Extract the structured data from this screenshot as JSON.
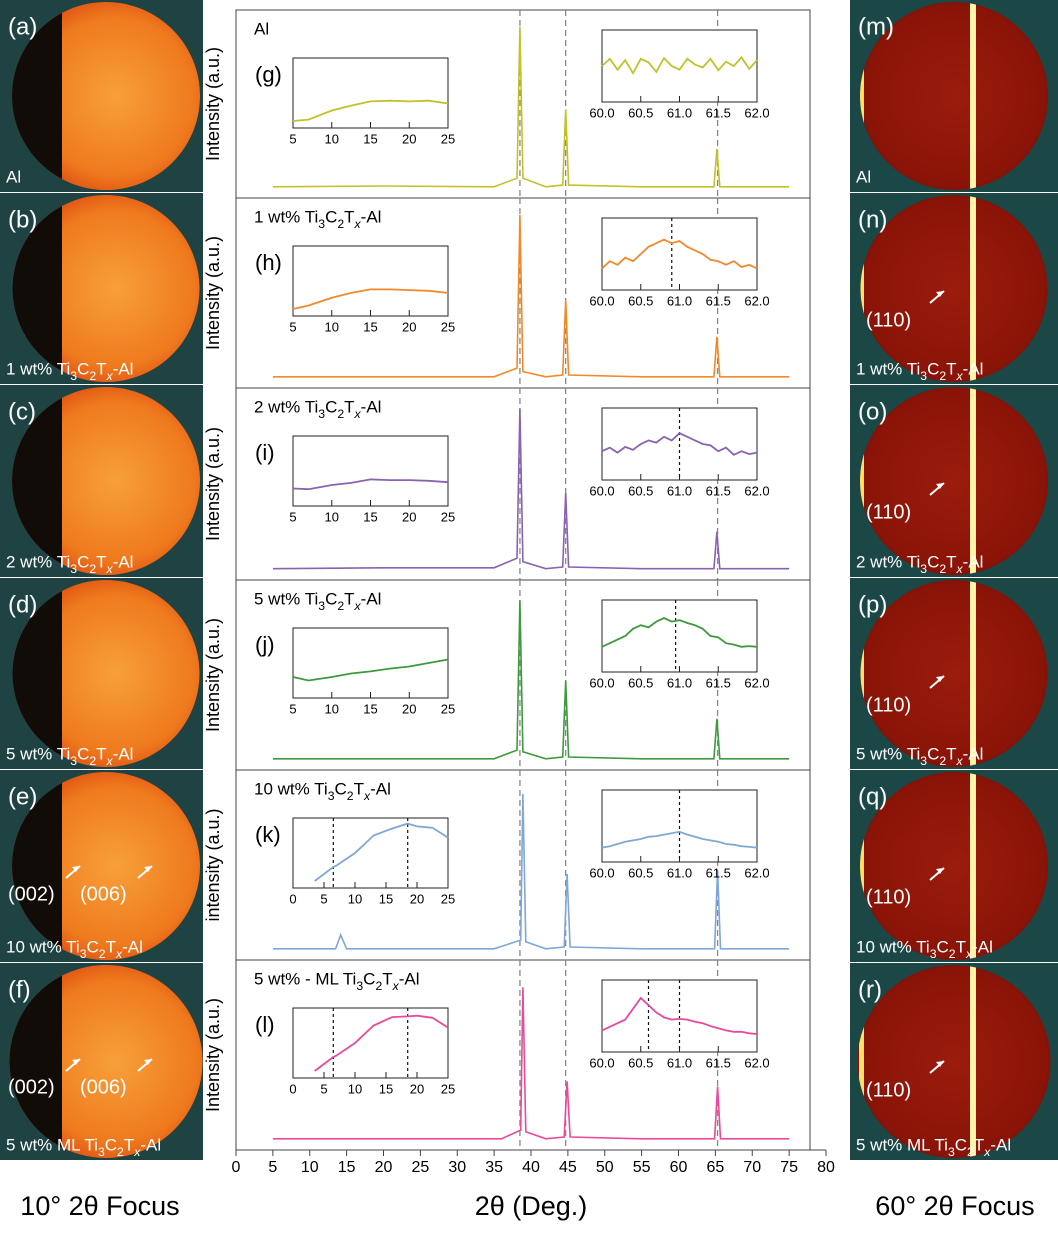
{
  "chart_data": [
    {
      "type": "line",
      "panel": "(g)",
      "title": "Al",
      "ylabel": "Intensity (a.u.)",
      "color": "#c2c22a",
      "xlim": [
        0,
        80
      ],
      "ylim": [
        0,
        100
      ],
      "vlines": [
        38.5,
        44.7,
        65.3
      ],
      "x": [
        5,
        20,
        35,
        38.1,
        38.5,
        38.9,
        42,
        44.3,
        44.7,
        45.1,
        55,
        64.8,
        65.2,
        65.6,
        75
      ],
      "values": [
        3,
        3.5,
        3,
        8,
        96,
        8,
        3,
        4,
        48,
        4,
        3,
        3,
        25,
        3,
        3
      ],
      "insets": [
        {
          "xlim": [
            5,
            25
          ],
          "ylim": [
            0,
            10
          ],
          "xticks": [
            5,
            10,
            15,
            20,
            25
          ],
          "x": [
            5,
            7,
            10,
            12.5,
            15,
            17.5,
            20,
            22.5,
            25
          ],
          "values": [
            1,
            1.2,
            2.5,
            3.2,
            3.8,
            3.9,
            3.8,
            3.9,
            3.5
          ]
        },
        {
          "xlim": [
            60,
            62
          ],
          "ylim": [
            0,
            10
          ],
          "xticks": [
            {
              "value": 60,
              "label": "60.0"
            },
            60.5,
            {
              "value": 61,
              "label": "61.0"
            },
            61.5,
            {
              "value": 62,
              "label": "62.0"
            }
          ],
          "x": [
            60,
            60.1,
            60.2,
            60.3,
            60.4,
            60.5,
            60.6,
            60.7,
            60.8,
            60.9,
            61,
            61.1,
            61.2,
            61.3,
            61.4,
            61.5,
            61.6,
            61.7,
            61.8,
            61.9,
            62
          ],
          "values": [
            5,
            6,
            4.5,
            5.8,
            4,
            6,
            5.5,
            4.2,
            6.1,
            5,
            4.5,
            6,
            5.2,
            4.8,
            6,
            4.4,
            5.6,
            5,
            6.2,
            4.6,
            5.8
          ]
        }
      ]
    },
    {
      "type": "line",
      "panel": "(h)",
      "title": "1 wt% Ti3C2Tx-Al",
      "ylabel": "Intensity (a.u.)",
      "color": "#f28a2a",
      "xlim": [
        0,
        80
      ],
      "ylim": [
        0,
        100
      ],
      "vlines": [
        38.5,
        44.7,
        65.3
      ],
      "x": [
        5,
        20,
        35,
        38.1,
        38.5,
        38.9,
        42,
        44.3,
        44.7,
        45.1,
        55,
        64.8,
        65.2,
        65.6,
        75
      ],
      "values": [
        3,
        3,
        3,
        8,
        96,
        6,
        3,
        4,
        47,
        4,
        3,
        3,
        26,
        3,
        3
      ],
      "insets": [
        {
          "xlim": [
            5,
            25
          ],
          "ylim": [
            0,
            10
          ],
          "xticks": [
            5,
            10,
            15,
            20,
            25
          ],
          "x": [
            5,
            7,
            10,
            12.5,
            15,
            17.5,
            20,
            22.5,
            25
          ],
          "values": [
            1,
            1.5,
            2.6,
            3.3,
            3.8,
            3.8,
            3.7,
            3.6,
            3.3
          ]
        },
        {
          "xlim": [
            60,
            62
          ],
          "ylim": [
            0,
            10
          ],
          "xticks": [
            {
              "value": 60,
              "label": "60.0"
            },
            60.5,
            {
              "value": 61,
              "label": "61.0"
            },
            61.5,
            {
              "value": 62,
              "label": "62.0"
            }
          ],
          "vlines": [
            60.9
          ],
          "x": [
            60,
            60.1,
            60.2,
            60.3,
            60.4,
            60.5,
            60.6,
            60.7,
            60.8,
            60.9,
            61,
            61.1,
            61.2,
            61.3,
            61.4,
            61.5,
            61.6,
            61.7,
            61.8,
            61.9,
            62
          ],
          "values": [
            3,
            4,
            3.5,
            4.5,
            4,
            5,
            6,
            6.5,
            7,
            6.5,
            6.8,
            6,
            5.5,
            5,
            4.2,
            4,
            3.5,
            4,
            3.2,
            3.5,
            3
          ]
        }
      ]
    },
    {
      "type": "line",
      "panel": "(i)",
      "title": "2 wt% Ti3C2Tx-Al",
      "ylabel": "Intensity (a.u.)",
      "color": "#8a62b0",
      "xlim": [
        0,
        80
      ],
      "ylim": [
        0,
        100
      ],
      "vlines": [
        38.5,
        44.7,
        65.3
      ],
      "x": [
        5,
        20,
        35,
        38.1,
        38.5,
        38.9,
        42,
        44.3,
        44.7,
        45.1,
        55,
        64.8,
        65.2,
        65.6,
        75
      ],
      "values": [
        3,
        3.5,
        3.5,
        9,
        94,
        7,
        3,
        4,
        46,
        4,
        3,
        3,
        24,
        3,
        3
      ],
      "insets": [
        {
          "xlim": [
            5,
            25
          ],
          "ylim": [
            0,
            10
          ],
          "xticks": [
            5,
            10,
            15,
            20,
            25
          ],
          "x": [
            5,
            7,
            10,
            12.5,
            15,
            17.5,
            20,
            22.5,
            25
          ],
          "values": [
            2.5,
            2.4,
            3,
            3.3,
            3.8,
            3.7,
            3.7,
            3.6,
            3.4
          ]
        },
        {
          "xlim": [
            60,
            62
          ],
          "ylim": [
            0,
            10
          ],
          "xticks": [
            {
              "value": 60,
              "label": "60.0"
            },
            60.5,
            {
              "value": 61,
              "label": "61.0"
            },
            61.5,
            {
              "value": 62,
              "label": "62.0"
            }
          ],
          "vlines": [
            61
          ],
          "x": [
            60,
            60.1,
            60.2,
            60.3,
            60.4,
            60.5,
            60.6,
            60.7,
            60.8,
            60.9,
            61,
            61.1,
            61.2,
            61.3,
            61.4,
            61.5,
            61.6,
            61.7,
            61.8,
            61.9,
            62
          ],
          "values": [
            4,
            4.5,
            3.8,
            4.6,
            4.2,
            5,
            5.5,
            5.2,
            6,
            5.5,
            6.5,
            6,
            5.5,
            5,
            4.8,
            4,
            4.5,
            3.5,
            4,
            3.6,
            3.8
          ]
        }
      ]
    },
    {
      "type": "line",
      "panel": "(j)",
      "title": "5 wt% Ti3C2Tx-Al",
      "ylabel": "Intensity (a.u.)",
      "color": "#3f9a3f",
      "xlim": [
        0,
        80
      ],
      "ylim": [
        0,
        100
      ],
      "vlines": [
        38.5,
        44.7,
        65.3
      ],
      "x": [
        5,
        20,
        35,
        38.1,
        38.5,
        38.9,
        42,
        44.3,
        44.7,
        45.1,
        55,
        64.8,
        65.2,
        65.6,
        75
      ],
      "values": [
        3,
        3,
        3,
        8,
        94,
        7,
        3,
        4,
        48,
        4,
        3,
        3,
        26,
        3,
        3
      ],
      "insets": [
        {
          "xlim": [
            5,
            25
          ],
          "ylim": [
            0,
            10
          ],
          "xticks": [
            5,
            10,
            15,
            20,
            25
          ],
          "x": [
            5,
            7,
            10,
            12.5,
            15,
            17.5,
            20,
            22.5,
            25
          ],
          "values": [
            3,
            2.5,
            3,
            3.5,
            3.8,
            4.2,
            4.5,
            5,
            5.5
          ]
        },
        {
          "xlim": [
            60,
            62
          ],
          "ylim": [
            0,
            10
          ],
          "xticks": [
            {
              "value": 60,
              "label": "60.0"
            },
            60.5,
            {
              "value": 61,
              "label": "61.0"
            },
            61.5,
            {
              "value": 62,
              "label": "62.0"
            }
          ],
          "vlines": [
            60.95
          ],
          "x": [
            60,
            60.1,
            60.2,
            60.3,
            60.4,
            60.5,
            60.6,
            60.7,
            60.8,
            60.9,
            61,
            61.1,
            61.2,
            61.3,
            61.4,
            61.5,
            61.6,
            61.7,
            61.8,
            61.9,
            62
          ],
          "values": [
            3.5,
            4,
            4.5,
            5,
            6,
            6.5,
            6.2,
            7,
            7.5,
            7,
            7.2,
            6.8,
            6.5,
            6,
            5,
            4.8,
            4,
            3.8,
            3.5,
            3.6,
            3.5
          ]
        }
      ]
    },
    {
      "type": "line",
      "panel": "(k)",
      "title": "10 wt% Ti3C2Tx-Al",
      "ylabel": "intensity (a.u.)",
      "color": "#7fa7d8",
      "xlim": [
        0,
        80
      ],
      "ylim": [
        0,
        100
      ],
      "vlines": [
        38.5,
        44.7,
        65.3
      ],
      "x": [
        5,
        13.5,
        14.2,
        15,
        35,
        38.6,
        38.9,
        39.3,
        42,
        44.5,
        44.9,
        45.3,
        55,
        64.9,
        65.3,
        65.7,
        75
      ],
      "values": [
        3,
        3,
        11,
        3,
        3,
        8,
        92,
        7,
        3,
        4,
        46,
        4,
        3,
        3,
        48,
        3,
        3
      ],
      "insets": [
        {
          "xlim": [
            0,
            25
          ],
          "ylim": [
            0,
            10
          ],
          "xticks": [
            0,
            5,
            10,
            15,
            20,
            25
          ],
          "vlines": [
            6.5,
            18.5
          ],
          "x": [
            3.5,
            5,
            6.5,
            7,
            10,
            13,
            16,
            18.5,
            20,
            22.5,
            25
          ],
          "values": [
            1,
            2,
            3,
            3.2,
            5,
            7.5,
            8.5,
            9.2,
            8.8,
            8.6,
            7.2
          ]
        },
        {
          "xlim": [
            60,
            62
          ],
          "ylim": [
            0,
            10
          ],
          "xticks": [
            {
              "value": 60,
              "label": "60.0"
            },
            60.5,
            {
              "value": 61,
              "label": "61.0"
            },
            61.5,
            {
              "value": 62,
              "label": "62.0"
            }
          ],
          "vlines": [
            61
          ],
          "x": [
            60,
            60.1,
            60.2,
            60.3,
            60.4,
            60.5,
            60.6,
            60.7,
            60.8,
            60.9,
            61,
            61.1,
            61.2,
            61.3,
            61.4,
            61.5,
            61.6,
            61.7,
            61.8,
            61.9,
            62
          ],
          "values": [
            2,
            2.2,
            2.5,
            2.8,
            3,
            3.2,
            3.5,
            3.6,
            3.8,
            4,
            4.2,
            3.8,
            3.5,
            3.2,
            3,
            2.8,
            2.5,
            2.4,
            2.2,
            2.1,
            2
          ]
        }
      ]
    },
    {
      "type": "line",
      "panel": "(l)",
      "title": "5 wt% - ML Ti3C2Tx-Al",
      "ylabel": "Intensity (a.u.)",
      "color": "#e94a9b",
      "xlim": [
        0,
        80
      ],
      "ylim": [
        0,
        100
      ],
      "vlines": [
        38.5,
        44.7,
        65.3
      ],
      "xticks": [
        0,
        5,
        10,
        15,
        20,
        25,
        30,
        35,
        40,
        45,
        50,
        55,
        60,
        65,
        70,
        75,
        80
      ],
      "xlabel": "2θ (Deg.)",
      "x": [
        5,
        20,
        36,
        38.6,
        38.9,
        39.3,
        42,
        44.5,
        44.9,
        45.3,
        55,
        64.9,
        65.3,
        65.7,
        75
      ],
      "values": [
        3,
        3,
        3,
        8,
        90,
        7,
        3,
        4,
        36,
        4,
        3,
        3,
        33,
        3,
        3
      ],
      "insets": [
        {
          "xlim": [
            0,
            25
          ],
          "ylim": [
            0,
            10
          ],
          "xticks": [
            0,
            5,
            10,
            15,
            20,
            25
          ],
          "vlines": [
            6.5,
            18.5
          ],
          "x": [
            3.5,
            5,
            6.5,
            7,
            10,
            13,
            16,
            18.5,
            20,
            22.5,
            25
          ],
          "values": [
            1,
            2,
            3,
            3.2,
            5,
            7.5,
            8.7,
            8.8,
            8.9,
            8.6,
            7.2
          ]
        },
        {
          "xlim": [
            60,
            62
          ],
          "ylim": [
            0,
            10
          ],
          "xticks": [
            {
              "value": 60,
              "label": "60.0"
            },
            60.5,
            {
              "value": 61,
              "label": "61.0"
            },
            61.5,
            {
              "value": 62,
              "label": "62.0"
            }
          ],
          "vlines": [
            60.6,
            61
          ],
          "x": [
            60,
            60.1,
            60.2,
            60.3,
            60.4,
            60.5,
            60.6,
            60.7,
            60.8,
            60.9,
            61,
            61.1,
            61.2,
            61.3,
            61.4,
            61.5,
            61.6,
            61.7,
            61.8,
            61.9,
            62
          ],
          "values": [
            3,
            3.5,
            4,
            4.5,
            6,
            7.5,
            6.5,
            5.5,
            4.8,
            4.5,
            4.6,
            4.5,
            4.2,
            4,
            3.6,
            3.3,
            3,
            2.8,
            2.8,
            2.6,
            2.5
          ]
        }
      ]
    }
  ],
  "images_left": [
    {
      "panel": "(a)",
      "sample": "Al"
    },
    {
      "panel": "(b)",
      "sample": "1 wt% Ti3C2Tx-Al"
    },
    {
      "panel": "(c)",
      "sample": "2 wt% Ti3C2Tx-Al"
    },
    {
      "panel": "(d)",
      "sample": "5 wt% Ti3C2Tx-Al"
    },
    {
      "panel": "(e)",
      "sample": "10 wt% Ti3C2Tx-Al",
      "peaks": [
        "(002)",
        "(006)"
      ]
    },
    {
      "panel": "(f)",
      "sample": "5 wt% ML Ti3C2Tx-Al",
      "peaks": [
        "(002)",
        "(006)"
      ]
    }
  ],
  "images_right": [
    {
      "panel": "(m)",
      "sample": "Al"
    },
    {
      "panel": "(n)",
      "sample": "1 wt% Ti3C2Tx-Al",
      "peaks": [
        "(110)"
      ]
    },
    {
      "panel": "(o)",
      "sample": "2 wt% Ti3C2Tx-Al",
      "peaks": [
        "(110)"
      ]
    },
    {
      "panel": "(p)",
      "sample": "5 wt% Ti3C2Tx-Al",
      "peaks": [
        "(110)"
      ]
    },
    {
      "panel": "(q)",
      "sample": "10 wt% Ti3C2Tx-Al",
      "peaks": [
        "(110)"
      ]
    },
    {
      "panel": "(r)",
      "sample": "5 wt% ML Ti3C2Tx-Al",
      "peaks": [
        "(110)"
      ]
    }
  ],
  "footer": {
    "left": "10° 2θ Focus",
    "right": "60° 2θ Focus"
  }
}
